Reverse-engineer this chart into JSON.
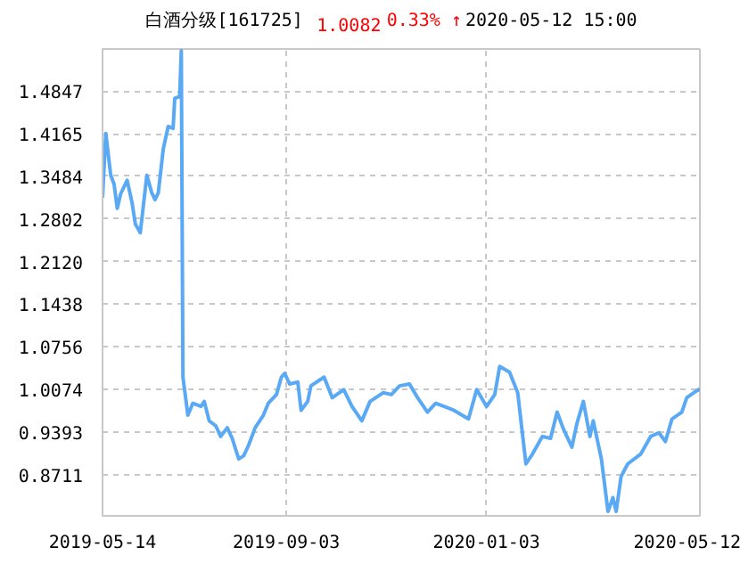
{
  "chart_data": {
    "type": "line",
    "title": "白酒分级[161725]",
    "annotations": [
      "1.0082",
      "0.33% ↑",
      "2020-05-12 15:00"
    ],
    "x": [
      "2019-05-14",
      "2019-05-16",
      "2019-05-19",
      "2019-05-21",
      "2019-05-23",
      "2019-05-25",
      "2019-05-29",
      "2019-06-01",
      "2019-06-03",
      "2019-06-06",
      "2019-06-10",
      "2019-06-13",
      "2019-06-15",
      "2019-06-17",
      "2019-06-20",
      "2019-06-23",
      "2019-06-26",
      "2019-06-27",
      "2019-06-30",
      "2019-07-01",
      "2019-07-02",
      "2019-07-05",
      "2019-07-08",
      "2019-07-13",
      "2019-07-15",
      "2019-07-18",
      "2019-07-22",
      "2019-07-25",
      "2019-07-29",
      "2019-08-01",
      "2019-08-05",
      "2019-08-08",
      "2019-08-11",
      "2019-08-15",
      "2019-08-20",
      "2019-08-23",
      "2019-08-28",
      "2019-08-31",
      "2019-09-02",
      "2019-09-05",
      "2019-09-10",
      "2019-09-12",
      "2019-09-16",
      "2019-09-18",
      "2019-09-26",
      "2019-10-01",
      "2019-10-08",
      "2019-10-13",
      "2019-10-19",
      "2019-10-24",
      "2019-11-01",
      "2019-11-06",
      "2019-11-11",
      "2019-11-17",
      "2019-11-22",
      "2019-11-28",
      "2019-12-03",
      "2019-12-08",
      "2019-12-14",
      "2019-12-23",
      "2019-12-28",
      "2020-01-03",
      "2020-01-08",
      "2020-01-11",
      "2020-01-17",
      "2020-01-22",
      "2020-01-27",
      "2020-01-31",
      "2020-02-06",
      "2020-02-11",
      "2020-02-15",
      "2020-02-19",
      "2020-02-24",
      "2020-02-27",
      "2020-03-02",
      "2020-03-06",
      "2020-03-08",
      "2020-03-13",
      "2020-03-17",
      "2020-03-20",
      "2020-03-22",
      "2020-03-25",
      "2020-03-29",
      "2020-04-06",
      "2020-04-12",
      "2020-04-17",
      "2020-04-21",
      "2020-04-25",
      "2020-05-01",
      "2020-05-04",
      "2020-05-10",
      "2020-05-12"
    ],
    "series": [
      {
        "color": "#5aa9f5",
        "values": [
          1.314,
          1.417,
          1.35,
          1.336,
          1.297,
          1.32,
          1.342,
          1.306,
          1.272,
          1.258,
          1.35,
          1.322,
          1.311,
          1.322,
          1.392,
          1.428,
          1.425,
          1.473,
          1.476,
          1.549,
          1.027,
          0.966,
          0.985,
          0.98,
          0.988,
          0.957,
          0.949,
          0.932,
          0.946,
          0.929,
          0.896,
          0.901,
          0.918,
          0.946,
          0.966,
          0.985,
          0.999,
          1.027,
          1.033,
          1.016,
          1.019,
          0.974,
          0.988,
          1.013,
          1.027,
          0.994,
          1.007,
          0.98,
          0.957,
          0.988,
          1.002,
          0.999,
          1.013,
          1.016,
          0.994,
          0.971,
          0.985,
          0.98,
          0.974,
          0.96,
          1.007,
          0.98,
          0.999,
          1.044,
          1.035,
          1.002,
          0.888,
          0.904,
          0.932,
          0.929,
          0.971,
          0.943,
          0.915,
          0.952,
          0.988,
          0.932,
          0.957,
          0.896,
          0.812,
          0.834,
          0.812,
          0.868,
          0.888,
          0.904,
          0.932,
          0.938,
          0.924,
          0.96,
          0.971,
          0.994,
          1.005,
          1.008
        ]
      }
    ],
    "xlim": [
      "2019-05-14",
      "2020-05-12"
    ],
    "xticks": [
      "2019-05-14",
      "2019-09-03",
      "2020-01-03",
      "2020-05-12"
    ],
    "ylim": [
      0.805,
      1.552
    ],
    "yticks": [
      0.8711,
      0.9393,
      1.0074,
      1.0756,
      1.1438,
      {
        "value": 1.212,
        "label": "1.2120"
      },
      1.2802,
      1.3484,
      1.4165,
      1.4847
    ],
    "grid": true
  }
}
